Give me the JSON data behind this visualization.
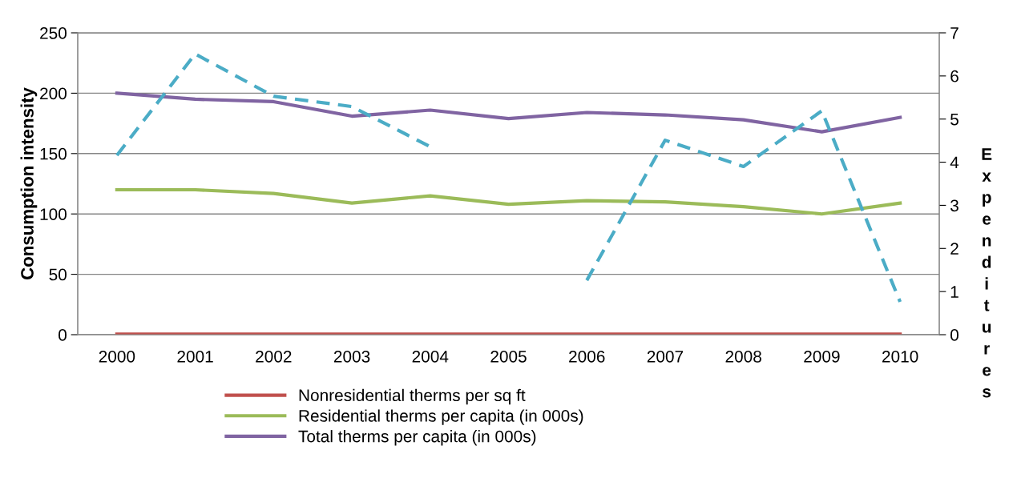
{
  "chart_data": {
    "type": "line",
    "ylabel": "Consumption intensity",
    "y2label": "Expenditures",
    "categories": [
      "2000",
      "2001",
      "2002",
      "2003",
      "2004",
      "2005",
      "2006",
      "2007",
      "2008",
      "2009",
      "2010"
    ],
    "series": [
      {
        "name": "Nonresidential therms per sq ft",
        "color": "#c0504d",
        "values": [
          0.5,
          0.5,
          0.5,
          0.5,
          0.4,
          0.4,
          0.4,
          0.4,
          0.4,
          0.4,
          0.4
        ]
      },
      {
        "name": "Residential therms per capita (in 000s)",
        "color": "#9bbb59",
        "values": [
          120,
          120,
          117,
          109,
          115,
          108,
          111,
          110,
          106,
          100,
          109
        ]
      },
      {
        "name": "Total therms per capita (in 000s)",
        "color": "#8064a2",
        "values": [
          200,
          195,
          193,
          181,
          186,
          179,
          184,
          182,
          178,
          168,
          180
        ]
      },
      {
        "color": "#4bacc6",
        "axis": "y2",
        "line_style": "dashed",
        "values": [
          4.16,
          6.51,
          5.53,
          5.29,
          4.36,
          null,
          1.26,
          4.51,
          3.9,
          5.19,
          0.76
        ]
      }
    ],
    "ylim": [
      0,
      250
    ],
    "yticks": [
      0,
      50,
      100,
      150,
      200,
      250
    ],
    "y2lim": [
      0,
      7
    ],
    "y2ticks": [
      0,
      1,
      2,
      3,
      4,
      5,
      6,
      7
    ],
    "grid": "y",
    "legend": "bottom"
  }
}
